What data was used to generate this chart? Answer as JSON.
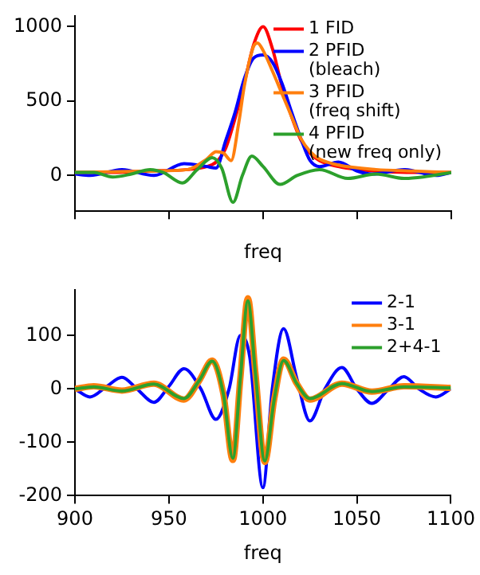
{
  "chart_data": [
    {
      "type": "line",
      "xlabel": "freq",
      "xlim": [
        900,
        1100
      ],
      "xticks": [
        900,
        950,
        1000,
        1050,
        1100
      ],
      "ylim": [
        -240,
        1070
      ],
      "yticks": [
        0,
        500,
        1000
      ],
      "tick_labels": "y",
      "grid": false,
      "legend": "top right",
      "marker": "none",
      "line_style": "solid",
      "series": [
        {
          "name": "1 FID",
          "color": "#ff0000",
          "x": [
            900,
            920,
            940,
            960,
            970,
            975,
            980,
            985,
            990,
            995,
            1000,
            1005,
            1010,
            1015,
            1020,
            1025,
            1030,
            1040,
            1050,
            1060,
            1080,
            1100
          ],
          "values": [
            20,
            20,
            30,
            40,
            60,
            90,
            180,
            380,
            620,
            880,
            1000,
            850,
            600,
            400,
            240,
            150,
            100,
            60,
            40,
            30,
            20,
            20
          ]
        },
        {
          "name": "2 PFID\n(bleach)",
          "color": "#0000ff",
          "x": [
            900,
            908,
            925,
            942,
            958,
            970,
            975,
            980,
            985,
            990,
            995,
            1000,
            1005,
            1010,
            1015,
            1020,
            1025,
            1030,
            1040,
            1050,
            1058,
            1075,
            1092,
            1100
          ],
          "values": [
            10,
            0,
            40,
            0,
            80,
            60,
            50,
            230,
            420,
            650,
            790,
            810,
            760,
            620,
            430,
            250,
            100,
            60,
            90,
            30,
            10,
            40,
            0,
            20
          ]
        },
        {
          "name": "3 PFID\n(freq shift)",
          "color": "#ff7f0e",
          "x": [
            900,
            940,
            960,
            970,
            975,
            979,
            983,
            987,
            990,
            995,
            997,
            1000,
            1005,
            1010,
            1015,
            1020,
            1025,
            1030,
            1040,
            1060,
            1080,
            1100
          ],
          "values": [
            20,
            30,
            40,
            110,
            160,
            150,
            100,
            350,
            600,
            870,
            890,
            840,
            700,
            550,
            400,
            250,
            160,
            110,
            70,
            40,
            30,
            20
          ]
        },
        {
          "name": "4 PFID\n(new freq only)",
          "color": "#2ca02c",
          "x": [
            900,
            910,
            920,
            930,
            940,
            947,
            957,
            965,
            973,
            978,
            984,
            989,
            994,
            1000,
            1009,
            1018,
            1030,
            1045,
            1060,
            1075,
            1085,
            1100
          ],
          "values": [
            20,
            20,
            -10,
            10,
            40,
            20,
            -50,
            40,
            120,
            50,
            -180,
            0,
            130,
            60,
            -60,
            0,
            40,
            -20,
            10,
            -20,
            -10,
            20
          ]
        }
      ]
    },
    {
      "type": "line",
      "xlabel": "freq",
      "xlim": [
        900,
        1100
      ],
      "xticks": [
        900,
        950,
        1000,
        1050,
        1100
      ],
      "ylim": [
        -200,
        185
      ],
      "yticks": [
        -200,
        -100,
        0,
        100
      ],
      "grid": false,
      "legend": "top right",
      "marker": "none",
      "line_style": "solid",
      "series": [
        {
          "name": "2-1",
          "color": "#0000ff",
          "x": [
            900,
            908,
            917,
            925,
            933,
            942,
            950,
            958,
            967,
            975,
            982,
            988,
            993,
            1000,
            1005,
            1011,
            1018,
            1025,
            1033,
            1042,
            1050,
            1058,
            1067,
            1075,
            1083,
            1092,
            1100
          ],
          "values": [
            0,
            -15,
            5,
            22,
            0,
            -25,
            5,
            38,
            0,
            -57,
            0,
            100,
            60,
            -185,
            0,
            113,
            20,
            -60,
            0,
            40,
            0,
            -27,
            0,
            23,
            0,
            -15,
            0
          ]
        },
        {
          "name": "3-1",
          "color": "#ff7f0e",
          "x": [
            900,
            910,
            925,
            942,
            958,
            966,
            973,
            979,
            984,
            988,
            992,
            996,
            1001,
            1006,
            1011,
            1018,
            1025,
            1042,
            1058,
            1075,
            1100
          ],
          "values": [
            0,
            5,
            -3,
            10,
            -20,
            15,
            53,
            -10,
            -133,
            20,
            170,
            30,
            -137,
            -20,
            55,
            10,
            -20,
            10,
            -5,
            5,
            2
          ]
        },
        {
          "name": "2+4-1",
          "color": "#2ca02c",
          "x": [
            900,
            910,
            925,
            942,
            958,
            966,
            973,
            979,
            984,
            988,
            992,
            996,
            1001,
            1006,
            1011,
            1018,
            1025,
            1042,
            1058,
            1075,
            1100
          ],
          "values": [
            0,
            4,
            -4,
            9,
            -18,
            15,
            52,
            -10,
            -130,
            20,
            165,
            30,
            -135,
            -20,
            53,
            10,
            -18,
            10,
            -5,
            4,
            2
          ]
        }
      ]
    }
  ]
}
